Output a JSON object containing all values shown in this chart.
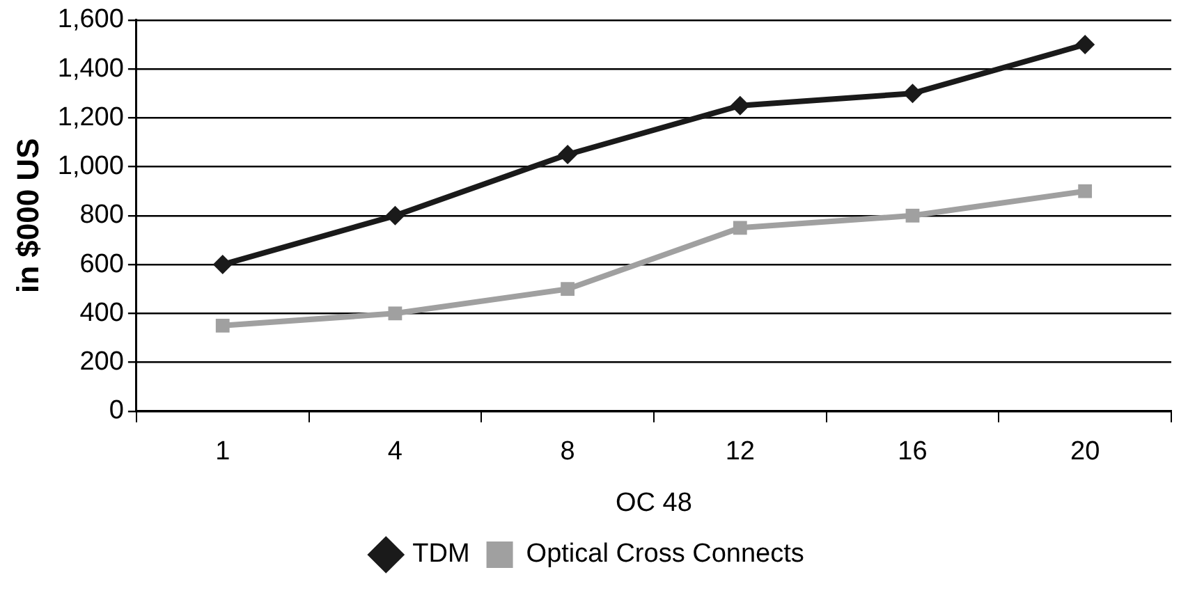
{
  "chart_data": {
    "type": "line",
    "xlabel": "OC 48",
    "ylabel": "in $000 US",
    "categories": [
      "1",
      "4",
      "8",
      "12",
      "16",
      "20"
    ],
    "series": [
      {
        "name": "TDM",
        "color": "#1a1a1a",
        "marker": "diamond",
        "values": [
          600,
          800,
          1050,
          1250,
          1300,
          1500
        ]
      },
      {
        "name": "Optical Cross Connects",
        "color": "#a0a0a0",
        "marker": "square",
        "values": [
          350,
          400,
          500,
          750,
          800,
          900
        ]
      }
    ],
    "ylim": [
      0,
      1600
    ],
    "yticks": [
      0,
      {
        "value": 200,
        "label": "200"
      },
      {
        "value": 400,
        "label": "400"
      },
      {
        "value": 600,
        "label": "600"
      },
      {
        "value": 800,
        "label": "800"
      },
      {
        "value": 1000,
        "label": "1,000"
      },
      {
        "value": 1200,
        "label": "1,200"
      },
      {
        "value": 1400,
        "label": "1,400"
      },
      {
        "value": 1600,
        "label": "1,600"
      }
    ],
    "grid": "y",
    "legend": "bottom",
    "line_style": "solid"
  }
}
